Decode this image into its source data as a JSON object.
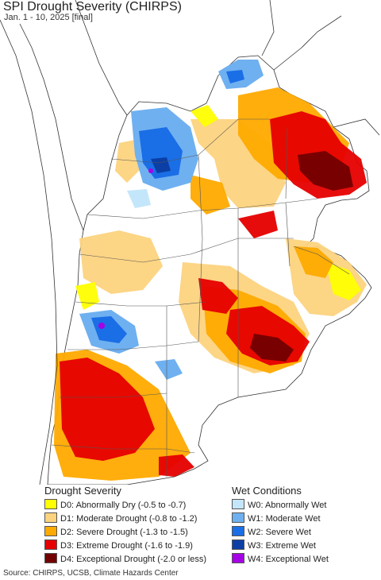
{
  "title": "SPI Drought Severity (CHIRPS)",
  "subtitle": "Jan. 1 - 10, 2025 [final]",
  "colors": {
    "ocean": "#ffffff",
    "no_data_land": "#ffffff",
    "d0": "#ffff00",
    "d1": "#fcd37f",
    "d2": "#ffaa00",
    "d3": "#e60000",
    "d4": "#730000",
    "w0": "#c4e6fa",
    "w1": "#6fb0f0",
    "w2": "#1a6ee6",
    "w3": "#0b3fa5",
    "w4": "#a600e6"
  },
  "legend": {
    "drought_heading": "Drought Severity",
    "wet_heading": "Wet Conditions",
    "drought": [
      {
        "label": "D0: Abnormally Dry (-0.5 to -0.7)",
        "color": "#ffff00"
      },
      {
        "label": "D1: Moderate Drought (-0.8 to -1.2)",
        "color": "#fcd37f"
      },
      {
        "label": "D2: Severe Drought (-1.3 to -1.5)",
        "color": "#ffaa00"
      },
      {
        "label": "D3: Extreme Drought (-1.6 to -1.9)",
        "color": "#e60000"
      },
      {
        "label": "D4: Exceptional Drought (-2.0 or less)",
        "color": "#730000"
      }
    ],
    "wet": [
      {
        "label": "W0: Abnormally Wet",
        "color": "#c4e6fa"
      },
      {
        "label": "W1: Moderate Wet",
        "color": "#6fb0f0"
      },
      {
        "label": "W2: Severe Wet",
        "color": "#1a6ee6"
      },
      {
        "label": "W3: Extreme Wet",
        "color": "#0b3fa5"
      },
      {
        "label": "W4: Exceptional Wet",
        "color": "#a600e6"
      }
    ]
  },
  "source": "Source: CHIRPS, UCSB, Climate Hazards Center"
}
